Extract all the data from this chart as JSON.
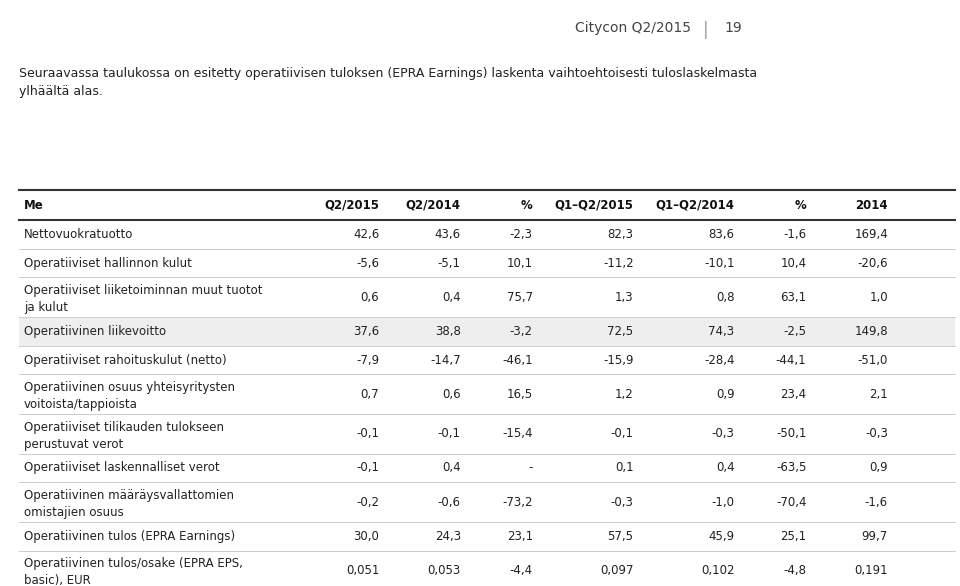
{
  "title_right": "Citycon Q2/2015",
  "page_number": "19",
  "intro_text": "Seuraavassa taulukossa on esitetty operatiivisen tuloksen (EPRA Earnings) laskenta vaihtoehtoisesti tuloslaskelmasta\nylhäältä alas.",
  "columns": [
    "Me",
    "Q2/2015",
    "Q2/2014",
    "%",
    "Q1–Q2/2015",
    "Q1–Q2/2014",
    "%",
    "2014"
  ],
  "rows": [
    {
      "label": "Nettovuokratuotto",
      "values": [
        "42,6",
        "43,6",
        "-2,3",
        "82,3",
        "83,6",
        "-1,6",
        "169,4"
      ],
      "shaded": false,
      "bold": false,
      "multiline": false
    },
    {
      "label": "Operatiiviset hallinnon kulut",
      "values": [
        "-5,6",
        "-5,1",
        "10,1",
        "-11,2",
        "-10,1",
        "10,4",
        "-20,6"
      ],
      "shaded": false,
      "bold": false,
      "multiline": false
    },
    {
      "label": "Operatiiviset liiketoiminnan muut tuotot\nja kulut",
      "values": [
        "0,6",
        "0,4",
        "75,7",
        "1,3",
        "0,8",
        "63,1",
        "1,0"
      ],
      "shaded": false,
      "bold": false,
      "multiline": true
    },
    {
      "label": "Operatiivinen liikevoitto",
      "values": [
        "37,6",
        "38,8",
        "-3,2",
        "72,5",
        "74,3",
        "-2,5",
        "149,8"
      ],
      "shaded": true,
      "bold": false,
      "multiline": false
    },
    {
      "label": "Operatiiviset rahoituskulut (netto)",
      "values": [
        "-7,9",
        "-14,7",
        "-46,1",
        "-15,9",
        "-28,4",
        "-44,1",
        "-51,0"
      ],
      "shaded": false,
      "bold": false,
      "multiline": false
    },
    {
      "label": "Operatiivinen osuus yhteisyritysten\nvoitoista/tappioista",
      "values": [
        "0,7",
        "0,6",
        "16,5",
        "1,2",
        "0,9",
        "23,4",
        "2,1"
      ],
      "shaded": false,
      "bold": false,
      "multiline": true
    },
    {
      "label": "Operatiiviset tilikauden tulokseen\nperustuvat verot",
      "values": [
        "-0,1",
        "-0,1",
        "-15,4",
        "-0,1",
        "-0,3",
        "-50,1",
        "-0,3"
      ],
      "shaded": false,
      "bold": false,
      "multiline": true
    },
    {
      "label": "Operatiiviset laskennalliset verot",
      "values": [
        "-0,1",
        "0,4",
        "-",
        "0,1",
        "0,4",
        "-63,5",
        "0,9"
      ],
      "shaded": false,
      "bold": false,
      "multiline": false
    },
    {
      "label": "Operatiivinen määräysvallattomien\nomistajien osuus",
      "values": [
        "-0,2",
        "-0,6",
        "-73,2",
        "-0,3",
        "-1,0",
        "-70,4",
        "-1,6"
      ],
      "shaded": false,
      "bold": false,
      "multiline": true
    },
    {
      "label": "Operatiivinen tulos (EPRA Earnings)",
      "values": [
        "30,0",
        "24,3",
        "23,1",
        "57,5",
        "45,9",
        "25,1",
        "99,7"
      ],
      "shaded": false,
      "bold": false,
      "multiline": false
    },
    {
      "label": "Operatiivinen tulos/osake (EPRA EPS,\nbasic), EUR",
      "values": [
        "0,051",
        "0,053",
        "-4,4",
        "0,097",
        "0,102",
        "-4,8",
        "0,191"
      ],
      "shaded": false,
      "bold": false,
      "multiline": true
    }
  ],
  "bg_color": "#ffffff",
  "header_line_color": "#333333",
  "row_line_color": "#cccccc",
  "shaded_color": "#eeeeee",
  "text_color": "#222222",
  "header_text_color": "#111111",
  "title_color": "#444444",
  "font_size": 8.5,
  "header_font_size": 8.5
}
